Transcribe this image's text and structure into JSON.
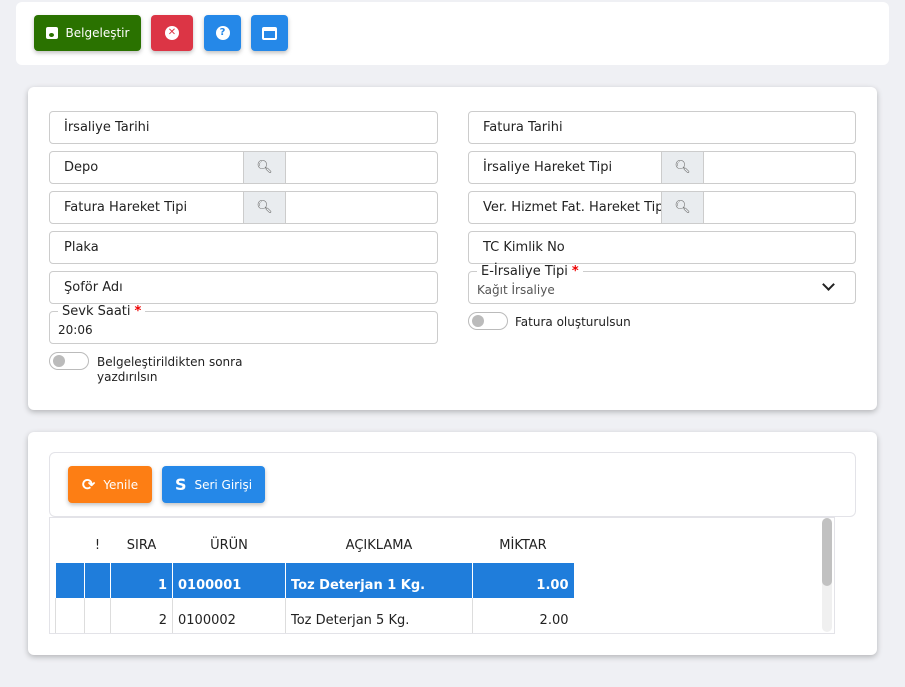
{
  "toolbar": {
    "save_label": "Belgeleştir",
    "colors": {
      "save": "#2a7200",
      "cancel": "#dc3545",
      "help": "#2588e8",
      "window": "#2588e8"
    }
  },
  "form": {
    "irsaliye_tarihi": "İrsaliye Tarihi",
    "fatura_tarihi": "Fatura Tarihi",
    "depo": "Depo",
    "irsaliye_hareket_tipi": "İrsaliye Hareket Tipi",
    "fatura_hareket_tipi": "Fatura Hareket Tipi",
    "ver_hizmet": "Ver. Hizmet Fat. Hareket Tipi",
    "plaka": "Plaka",
    "tc": "TC Kimlik No",
    "sofor": "Şoför Adı",
    "e_irsaliye_label": "E-İrsaliye Tipi",
    "e_irsaliye_value": "Kağıt İrsaliye",
    "sevk_label": "Sevk Saati",
    "sevk_value": "20:06",
    "required_mark": "*",
    "toggle_print": "Belgeleştirildikten sonra yazdırılsın",
    "toggle_print_on": false,
    "toggle_invoice": "Fatura oluşturulsun",
    "toggle_invoice_on": false
  },
  "grid": {
    "refresh_label": "Yenile",
    "serial_label": "Seri Girişi",
    "columns": [
      "",
      "!",
      "SIRA",
      "ÜRÜN",
      "AÇIKLAMA",
      "MİKTAR"
    ],
    "rows": [
      {
        "sira": "1",
        "urun": "0100001",
        "aciklama": "Toz Deterjan 1 Kg.",
        "miktar": "1.00",
        "selected": true
      },
      {
        "sira": "2",
        "urun": "0100002",
        "aciklama": "Toz Deterjan 5 Kg.",
        "miktar": "2.00",
        "selected": false
      }
    ]
  }
}
